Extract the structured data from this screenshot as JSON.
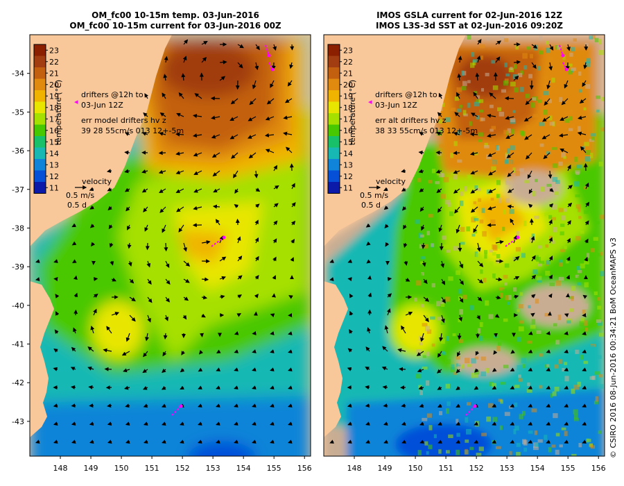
{
  "left_panel": {
    "title_line1": "OM_fc00 10-15m temp. 03-Jun-2016",
    "title_line2": "OM_fc00 10-15m current for 03-Jun-2016 00Z",
    "annotation_line1": "drifters @12h to",
    "annotation_line2": "03-Jun 12Z",
    "annotation_line3": "err model drifters hv z",
    "annotation_line4": "39 28 55cm/s 013 12+-5m"
  },
  "right_panel": {
    "title_line1": "IMOS GSLA current for 02-Jun-2016 12Z",
    "title_line2": "IMOS L3S-3d SST at 02-Jun-2016 09:20Z",
    "annotation_line1": "drifters @12h to",
    "annotation_line2": "03-Jun 12Z",
    "annotation_line3": "err alt drifters hv z",
    "annotation_line4": "38 33 55cm/s 013 12+-5m"
  },
  "colorbar": {
    "label": "temperature (°C)",
    "ticks": [
      "23",
      "22",
      "21",
      "20",
      "19",
      "18",
      "17",
      "16",
      "15",
      "14",
      "13",
      "12",
      "11"
    ],
    "colors": [
      "#8b2000",
      "#a13d10",
      "#c36010",
      "#e08a10",
      "#f0b400",
      "#e8e600",
      "#a6e000",
      "#48c800",
      "#19c06a",
      "#17b8b4",
      "#0f84d8",
      "#0650d8",
      "#0b1aa8"
    ]
  },
  "velocity_legend": {
    "title": "velocity",
    "speed": "0.5 m/s",
    "duration": "0.5 d"
  },
  "axes": {
    "lat_ticks": [
      "-34",
      "-35",
      "-36",
      "-37",
      "-38",
      "-39",
      "-40",
      "-41",
      "-42",
      "-43"
    ],
    "lon_ticks": [
      "148",
      "149",
      "150",
      "151",
      "152",
      "153",
      "154",
      "155",
      "156"
    ],
    "lat_range": [
      -43.9,
      -33.0
    ],
    "lon_range": [
      147.0,
      156.2
    ]
  },
  "colors": {
    "land": "#f8c79a",
    "no_data": "#c9ad93",
    "drifter": "#ff00ff",
    "arrow": "#000000"
  },
  "credit": "© CSIRO 2016   08-Jun-2016 00:34:21 BoM OceanMAPS v3"
}
